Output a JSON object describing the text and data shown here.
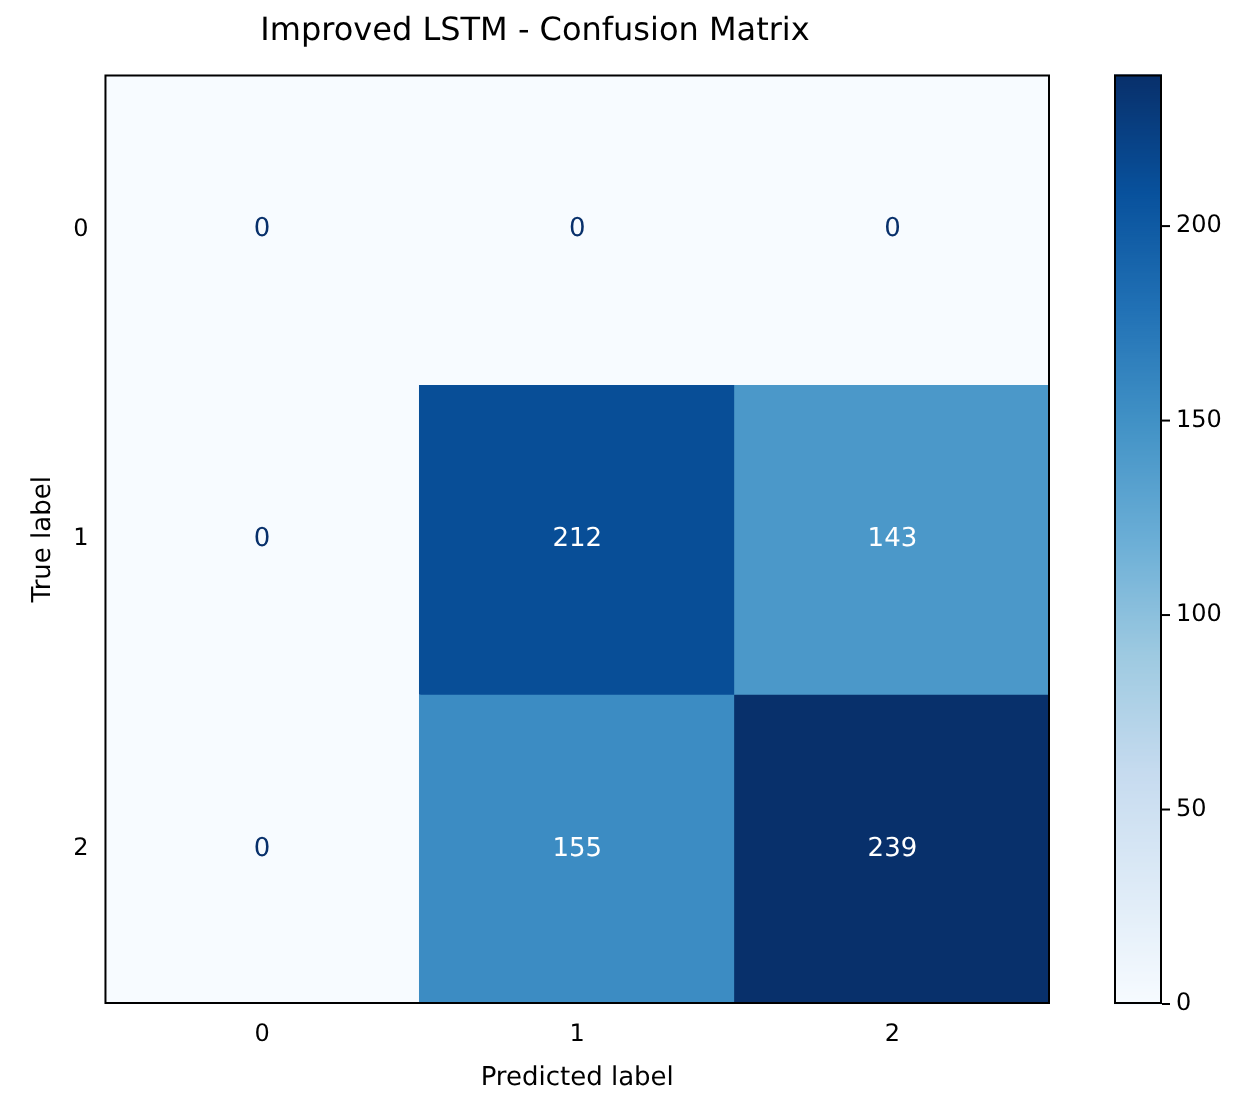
{
  "chart_data": {
    "type": "heatmap",
    "title": "Improved LSTM - Confusion Matrix",
    "xlabel": "Predicted label",
    "ylabel": "True label",
    "categories": [
      "0",
      "1",
      "2"
    ],
    "y_categories": [
      "0",
      "1",
      "2"
    ],
    "cells": [
      [
        0,
        0,
        0
      ],
      [
        0,
        212,
        143
      ],
      [
        0,
        155,
        239
      ]
    ],
    "clim": [
      0,
      239
    ],
    "cticks": [
      0,
      50,
      100,
      150,
      200
    ],
    "data_labels": true
  }
}
